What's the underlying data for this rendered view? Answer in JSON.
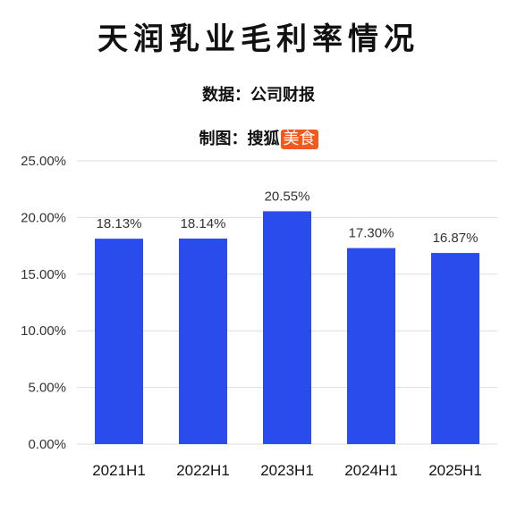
{
  "header": {
    "title": "天润乳业毛利率情况",
    "source_label": "数据：",
    "source_value": "公司财报",
    "maker_label": "制图：",
    "maker_name": "搜狐",
    "maker_badge": "美食"
  },
  "colors": {
    "bar": "#2b4ced",
    "grid": "#dddddd",
    "badge": "#f05a1e"
  },
  "chart_data": {
    "type": "bar",
    "title": "天润乳业毛利率情况",
    "xlabel": "",
    "ylabel": "",
    "categories": [
      "2021H1",
      "2022H1",
      "2023H1",
      "2024H1",
      "2025H1"
    ],
    "values": [
      18.13,
      18.14,
      20.55,
      17.3,
      16.87
    ],
    "value_labels": [
      "18.13%",
      "18.14%",
      "20.55%",
      "17.30%",
      "16.87%"
    ],
    "ylim": [
      0,
      25
    ],
    "yticks": [
      0,
      5,
      10,
      15,
      20,
      25
    ],
    "ytick_labels": [
      "0.00%",
      "5.00%",
      "10.00%",
      "15.00%",
      "20.00%",
      "25.00%"
    ],
    "grid": true,
    "legend": "none"
  }
}
